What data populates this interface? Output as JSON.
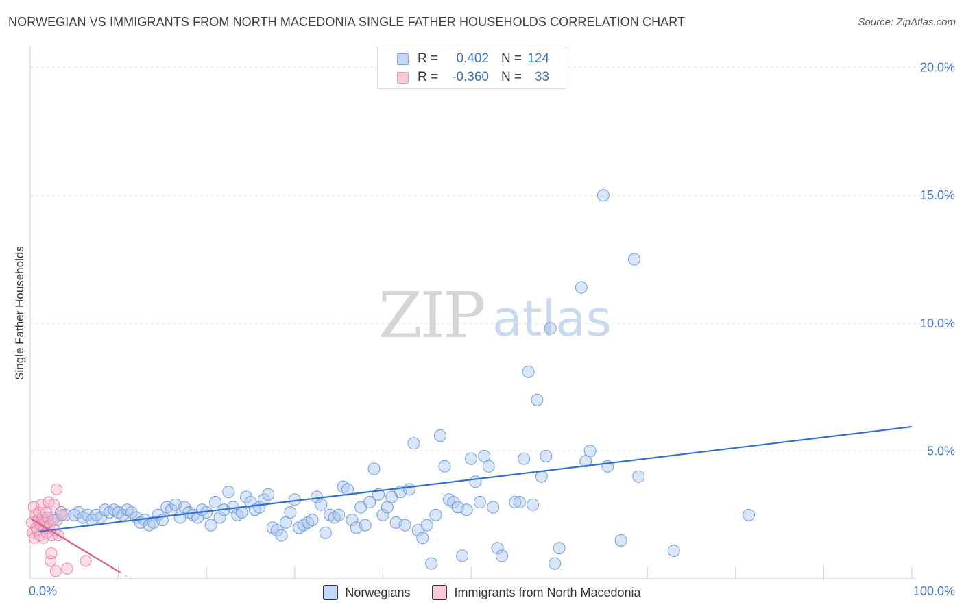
{
  "header": {
    "title": "NORWEGIAN VS IMMIGRANTS FROM NORTH MACEDONIA SINGLE FATHER HOUSEHOLDS CORRELATION CHART",
    "source": "Source: ZipAtlas.com"
  },
  "watermark": {
    "zip": "ZIP",
    "atlas": "atlas"
  },
  "stats": {
    "rows": [
      {
        "r_label": "R =",
        "r_value": "0.402",
        "n_label": "N =",
        "n_value": "124"
      },
      {
        "r_label": "R =",
        "r_value": "-0.360",
        "n_label": "N =",
        "n_value": "33"
      }
    ]
  },
  "legend": {
    "items": [
      {
        "label": "Norwegians"
      },
      {
        "label": "Immigrants from North Macedonia"
      }
    ]
  },
  "colors": {
    "blue_fill": "#aac6f0",
    "blue_stroke": "#6f9bd8",
    "blue_line": "#2f6fd1",
    "pink_fill": "#f6b6cb",
    "pink_stroke": "#e57fa5",
    "pink_line": "#e0588a"
  },
  "chart_data": {
    "type": "scatter",
    "title": "NORWEGIAN VS IMMIGRANTS FROM NORTH MACEDONIA SINGLE FATHER HOUSEHOLDS CORRELATION CHART",
    "xlabel": "",
    "ylabel": "Single Father Households",
    "xlim": [
      0,
      100
    ],
    "ylim": [
      0,
      20.5
    ],
    "x_tick_labels": [
      "0.0%",
      "100.0%"
    ],
    "y_ticks": [
      5,
      10,
      15,
      20
    ],
    "y_tick_labels": [
      "5.0%",
      "10.0%",
      "15.0%",
      "20.0%"
    ],
    "legend_position": "bottom-center",
    "series": [
      {
        "name": "Norwegians",
        "r": 0.402,
        "n": 124,
        "trend": {
          "x": [
            1.0,
            100.0
          ],
          "y": [
            1.85,
            5.95
          ]
        },
        "points": [
          [
            1.5,
            2.3
          ],
          [
            2.0,
            2.2
          ],
          [
            2.5,
            2.4
          ],
          [
            3.0,
            2.3
          ],
          [
            3.5,
            2.6
          ],
          [
            4.0,
            2.5
          ],
          [
            5.0,
            2.5
          ],
          [
            5.5,
            2.6
          ],
          [
            6.0,
            2.4
          ],
          [
            6.5,
            2.5
          ],
          [
            7.0,
            2.3
          ],
          [
            7.5,
            2.5
          ],
          [
            8.0,
            2.4
          ],
          [
            8.5,
            2.7
          ],
          [
            9.0,
            2.6
          ],
          [
            9.5,
            2.7
          ],
          [
            10.0,
            2.6
          ],
          [
            10.5,
            2.5
          ],
          [
            11.0,
            2.7
          ],
          [
            11.5,
            2.6
          ],
          [
            12.0,
            2.4
          ],
          [
            12.5,
            2.2
          ],
          [
            13.0,
            2.3
          ],
          [
            13.5,
            2.1
          ],
          [
            14.0,
            2.2
          ],
          [
            14.5,
            2.5
          ],
          [
            15.0,
            2.3
          ],
          [
            15.5,
            2.8
          ],
          [
            16.0,
            2.7
          ],
          [
            16.5,
            2.9
          ],
          [
            17.0,
            2.4
          ],
          [
            17.5,
            2.8
          ],
          [
            18.0,
            2.6
          ],
          [
            18.5,
            2.5
          ],
          [
            19.0,
            2.4
          ],
          [
            19.5,
            2.7
          ],
          [
            20.0,
            2.6
          ],
          [
            20.5,
            2.1
          ],
          [
            21.0,
            3.0
          ],
          [
            21.5,
            2.4
          ],
          [
            22.0,
            2.7
          ],
          [
            22.5,
            3.4
          ],
          [
            23.0,
            2.8
          ],
          [
            23.5,
            2.5
          ],
          [
            24.0,
            2.6
          ],
          [
            24.5,
            3.2
          ],
          [
            25.0,
            3.0
          ],
          [
            25.5,
            2.7
          ],
          [
            26.0,
            2.8
          ],
          [
            26.5,
            3.1
          ],
          [
            27.0,
            3.3
          ],
          [
            27.5,
            2.0
          ],
          [
            28.0,
            1.9
          ],
          [
            28.5,
            1.7
          ],
          [
            29.0,
            2.2
          ],
          [
            29.5,
            2.6
          ],
          [
            30.0,
            3.1
          ],
          [
            30.5,
            2.0
          ],
          [
            31.0,
            2.1
          ],
          [
            31.5,
            2.2
          ],
          [
            32.0,
            2.3
          ],
          [
            32.5,
            3.2
          ],
          [
            33.0,
            2.9
          ],
          [
            33.5,
            1.8
          ],
          [
            34.0,
            2.5
          ],
          [
            34.5,
            2.4
          ],
          [
            35.0,
            2.5
          ],
          [
            35.5,
            3.6
          ],
          [
            36.0,
            3.5
          ],
          [
            36.5,
            2.3
          ],
          [
            37.0,
            2.0
          ],
          [
            37.5,
            2.8
          ],
          [
            38.0,
            2.1
          ],
          [
            38.5,
            3.0
          ],
          [
            39.0,
            4.3
          ],
          [
            39.5,
            3.3
          ],
          [
            40.0,
            2.5
          ],
          [
            40.5,
            2.8
          ],
          [
            41.0,
            3.2
          ],
          [
            41.5,
            2.2
          ],
          [
            42.0,
            3.4
          ],
          [
            42.5,
            2.1
          ],
          [
            43.0,
            3.5
          ],
          [
            43.5,
            5.3
          ],
          [
            44.0,
            1.9
          ],
          [
            44.5,
            1.6
          ],
          [
            45.0,
            2.1
          ],
          [
            45.5,
            0.6
          ],
          [
            46.0,
            2.5
          ],
          [
            46.5,
            5.6
          ],
          [
            47.0,
            4.4
          ],
          [
            47.5,
            3.1
          ],
          [
            48.0,
            3.0
          ],
          [
            48.5,
            2.8
          ],
          [
            49.0,
            0.9
          ],
          [
            49.5,
            2.7
          ],
          [
            50.0,
            4.7
          ],
          [
            50.5,
            3.8
          ],
          [
            51.0,
            3.0
          ],
          [
            51.5,
            4.8
          ],
          [
            52.0,
            4.4
          ],
          [
            52.5,
            2.8
          ],
          [
            53.0,
            1.2
          ],
          [
            53.5,
            0.9
          ],
          [
            55.0,
            3.0
          ],
          [
            55.5,
            3.0
          ],
          [
            56.0,
            4.7
          ],
          [
            56.5,
            8.1
          ],
          [
            57.0,
            2.9
          ],
          [
            57.5,
            7.0
          ],
          [
            58.0,
            4.0
          ],
          [
            58.5,
            4.8
          ],
          [
            59.0,
            9.8
          ],
          [
            59.5,
            0.6
          ],
          [
            60.0,
            1.2
          ],
          [
            62.5,
            11.4
          ],
          [
            63.0,
            4.6
          ],
          [
            63.5,
            5.0
          ],
          [
            65.0,
            15.0
          ],
          [
            65.5,
            4.4
          ],
          [
            67.0,
            1.5
          ],
          [
            68.5,
            12.5
          ],
          [
            69.0,
            4.0
          ],
          [
            73.0,
            1.1
          ],
          [
            81.5,
            2.5
          ]
        ]
      },
      {
        "name": "Immigrants from North Macedonia",
        "r": -0.36,
        "n": 33,
        "trend": {
          "x": [
            0.1,
            10.2
          ],
          "y": [
            2.35,
            0.25
          ],
          "dashed_extension_to_x": 11.5
        },
        "points": [
          [
            0.2,
            2.2
          ],
          [
            0.3,
            1.8
          ],
          [
            0.4,
            2.8
          ],
          [
            0.5,
            1.6
          ],
          [
            0.6,
            2.5
          ],
          [
            0.7,
            2.0
          ],
          [
            0.8,
            1.9
          ],
          [
            0.9,
            2.3
          ],
          [
            1.0,
            2.6
          ],
          [
            1.1,
            1.7
          ],
          [
            1.2,
            2.1
          ],
          [
            1.3,
            2.9
          ],
          [
            1.4,
            2.4
          ],
          [
            1.5,
            1.6
          ],
          [
            1.6,
            2.0
          ],
          [
            1.7,
            2.2
          ],
          [
            1.8,
            2.6
          ],
          [
            1.9,
            1.8
          ],
          [
            2.0,
            2.4
          ],
          [
            2.1,
            3.0
          ],
          [
            2.2,
            2.1
          ],
          [
            2.3,
            0.7
          ],
          [
            2.4,
            1.0
          ],
          [
            2.5,
            1.7
          ],
          [
            2.6,
            2.3
          ],
          [
            2.7,
            2.9
          ],
          [
            2.8,
            1.9
          ],
          [
            2.9,
            0.3
          ],
          [
            3.0,
            3.5
          ],
          [
            3.2,
            1.7
          ],
          [
            3.6,
            2.5
          ],
          [
            4.2,
            0.4
          ],
          [
            6.3,
            0.7
          ]
        ]
      }
    ]
  }
}
